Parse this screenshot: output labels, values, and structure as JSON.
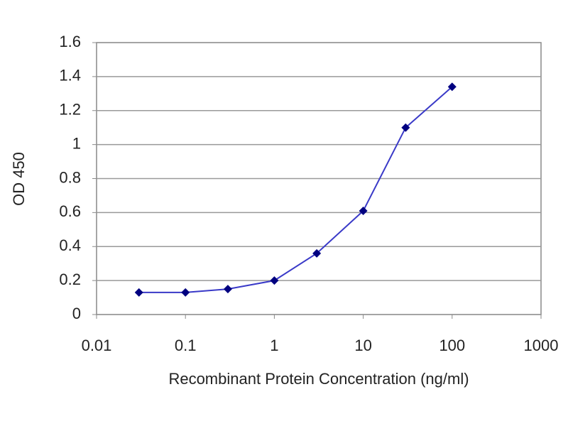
{
  "chart_data": {
    "type": "line",
    "xlabel": "Recombinant Protein Concentration (ng/ml)",
    "ylabel": "OD 450",
    "x": [
      0.03,
      0.1,
      0.3,
      1,
      3,
      10,
      30,
      100
    ],
    "series": [
      {
        "values": [
          0.13,
          0.13,
          0.15,
          0.2,
          0.36,
          0.61,
          1.1,
          1.34
        ],
        "color": "#3a3ac8",
        "marker_color": "#000080"
      }
    ],
    "xscale": "log",
    "xlim": [
      0.01,
      1000
    ],
    "xticks": [
      0.01,
      0.1,
      1,
      10,
      100,
      1000
    ],
    "ylim": [
      0,
      1.6
    ],
    "yticks": [
      0,
      0.2,
      0.4,
      0.6,
      0.8,
      1,
      1.2,
      1.4,
      1.6
    ],
    "grid": true
  }
}
